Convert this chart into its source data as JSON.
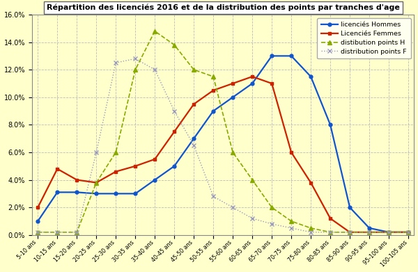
{
  "title": "Répartition des licenciés 2016 et de la distribution des points par tranches d'age",
  "categories": [
    "5-10 ans",
    "10-15 ans",
    "15-20 ans",
    "20-25 ans",
    "25-30 ans",
    "30-35 ans",
    "35-40 ans",
    "40-45 ans",
    "45-50 ans",
    "50-55 ans",
    "55-60 ans",
    "60-65 ans",
    "65-70 ans",
    "70-75 ans",
    "75-80 ans",
    "80-85 ans",
    "85-90 ans",
    "90-95 ans",
    "95-100 ans",
    "100-105 ans"
  ],
  "licencies_hommes": [
    0.01,
    0.031,
    0.031,
    0.03,
    0.03,
    0.03,
    0.04,
    0.05,
    0.07,
    0.09,
    0.1,
    0.11,
    0.13,
    0.13,
    0.115,
    0.08,
    0.02,
    0.005,
    0.002,
    0.002
  ],
  "licencies_femmes": [
    0.02,
    0.048,
    0.04,
    0.038,
    0.046,
    0.05,
    0.055,
    0.075,
    0.095,
    0.105,
    0.11,
    0.115,
    0.11,
    0.06,
    0.038,
    0.012,
    0.002,
    0.002,
    0.002,
    0.002
  ],
  "distrib_points_h": [
    0.002,
    0.002,
    0.002,
    0.038,
    0.06,
    0.12,
    0.148,
    0.138,
    0.12,
    0.115,
    0.06,
    0.04,
    0.02,
    0.01,
    0.005,
    0.002,
    0.002,
    0.002,
    0.002,
    0.002
  ],
  "distrib_points_f": [
    0.002,
    0.002,
    0.002,
    0.06,
    0.125,
    0.128,
    0.12,
    0.09,
    0.065,
    0.028,
    0.02,
    0.012,
    0.008,
    0.005,
    0.002,
    0.002,
    0.002,
    0.002,
    0.002,
    0.002
  ],
  "color_hommes": "#1155cc",
  "color_femmes": "#cc2200",
  "color_points_h": "#88aa00",
  "color_points_f": "#9999bb",
  "bg_color": "#ffffcc",
  "grid_color": "#bbbbbb",
  "ylim": [
    0,
    0.16
  ],
  "yticks": [
    0.0,
    0.02,
    0.04,
    0.06,
    0.08,
    0.1,
    0.12,
    0.14,
    0.16
  ],
  "legend_labels": [
    "licenciés Hommes",
    "Licenciés Femmes",
    "distibution points H",
    "distribution points F"
  ]
}
